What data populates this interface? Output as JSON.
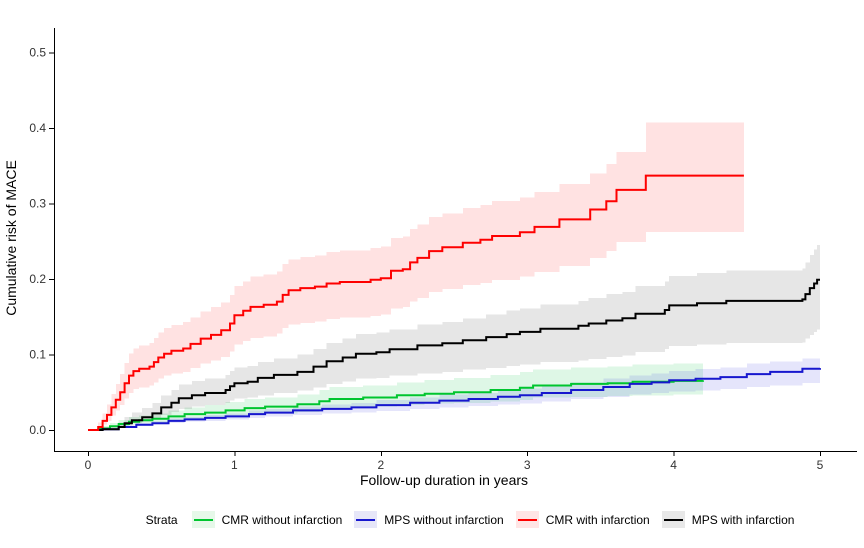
{
  "chart_data": {
    "type": "line",
    "subtype": "step-cumulative-incidence-with-confidence-bands",
    "title": "",
    "xlabel": "Follow-up duration in years",
    "ylabel": "Cumulative risk of MACE",
    "xlim": [
      0,
      5
    ],
    "ylim": [
      0,
      0.5
    ],
    "x_tick_labels": [
      "0",
      "1",
      "2",
      "3",
      "4",
      "5"
    ],
    "x_tick_values": [
      0,
      1,
      2,
      3,
      4,
      5
    ],
    "y_tick_labels": [
      "0.0",
      "0.1",
      "0.2",
      "0.3",
      "0.4",
      "0.5"
    ],
    "y_tick_values": [
      0,
      0.1,
      0.2,
      0.3,
      0.4,
      0.5
    ],
    "grid": false,
    "legend_position": "bottom",
    "legend_title": "Strata",
    "series": [
      {
        "name": "CMR without infarction",
        "line_color": "#00C52F",
        "band_fill": "rgba(0,190,60,0.13)",
        "key_bg": "#e6f8e9",
        "x": [
          0,
          0.08,
          0.15,
          0.21,
          0.28,
          0.35,
          0.44,
          0.55,
          0.66,
          0.8,
          0.94,
          1.07,
          1.21,
          1.43,
          1.58,
          1.65,
          1.88,
          2.11,
          2.3,
          2.5,
          2.75,
          2.95,
          3.04,
          3.3,
          3.55,
          3.72,
          4.0,
          4.2
        ],
        "y": [
          0,
          0.002,
          0.005,
          0.008,
          0.011,
          0.013,
          0.015,
          0.018,
          0.021,
          0.023,
          0.026,
          0.029,
          0.031,
          0.034,
          0.038,
          0.041,
          0.043,
          0.046,
          0.048,
          0.05,
          0.053,
          0.056,
          0.059,
          0.061,
          0.062,
          0.064,
          0.065,
          0.066
        ],
        "lo": [
          0,
          0.001,
          0.003,
          0.005,
          0.007,
          0.009,
          0.01,
          0.012,
          0.014,
          0.016,
          0.018,
          0.02,
          0.022,
          0.024,
          0.027,
          0.029,
          0.031,
          0.033,
          0.035,
          0.036,
          0.038,
          0.04,
          0.043,
          0.044,
          0.045,
          0.046,
          0.047,
          0.048
        ],
        "hi": [
          0,
          0.005,
          0.009,
          0.013,
          0.017,
          0.019,
          0.022,
          0.026,
          0.03,
          0.033,
          0.037,
          0.041,
          0.043,
          0.047,
          0.053,
          0.057,
          0.059,
          0.063,
          0.066,
          0.069,
          0.073,
          0.077,
          0.08,
          0.083,
          0.084,
          0.087,
          0.088,
          0.09
        ]
      },
      {
        "name": "MPS without infarction",
        "line_color": "#1717CE",
        "band_fill": "rgba(40,40,220,0.12)",
        "key_bg": "#e6e6f8",
        "x": [
          0,
          0.1,
          0.21,
          0.33,
          0.44,
          0.55,
          0.66,
          0.8,
          0.94,
          1.1,
          1.21,
          1.4,
          1.6,
          1.8,
          1.97,
          2.2,
          2.4,
          2.6,
          2.8,
          2.95,
          3.1,
          3.3,
          3.52,
          3.7,
          3.85,
          3.97,
          4.15,
          4.32,
          4.5,
          4.66,
          4.88,
          5.0
        ],
        "y": [
          0,
          0.001,
          0.004,
          0.007,
          0.009,
          0.012,
          0.014,
          0.016,
          0.018,
          0.021,
          0.023,
          0.026,
          0.028,
          0.03,
          0.033,
          0.036,
          0.039,
          0.041,
          0.044,
          0.046,
          0.049,
          0.053,
          0.057,
          0.061,
          0.063,
          0.066,
          0.068,
          0.07,
          0.074,
          0.077,
          0.081,
          0.082
        ],
        "lo": [
          0,
          0.001,
          0.003,
          0.005,
          0.007,
          0.009,
          0.011,
          0.012,
          0.014,
          0.016,
          0.018,
          0.02,
          0.022,
          0.023,
          0.025,
          0.028,
          0.03,
          0.032,
          0.034,
          0.035,
          0.038,
          0.041,
          0.044,
          0.047,
          0.049,
          0.051,
          0.052,
          0.054,
          0.057,
          0.059,
          0.062,
          0.063
        ],
        "hi": [
          0,
          0.002,
          0.006,
          0.009,
          0.012,
          0.015,
          0.017,
          0.02,
          0.022,
          0.026,
          0.028,
          0.031,
          0.034,
          0.036,
          0.04,
          0.043,
          0.047,
          0.049,
          0.052,
          0.055,
          0.058,
          0.063,
          0.068,
          0.072,
          0.075,
          0.078,
          0.081,
          0.083,
          0.088,
          0.091,
          0.095,
          0.096
        ]
      },
      {
        "name": "MPS with infarction",
        "line_color": "#000000",
        "band_fill": "rgba(60,60,60,0.13)",
        "key_bg": "#e8e8e8",
        "x": [
          0,
          0.1,
          0.21,
          0.25,
          0.3,
          0.37,
          0.44,
          0.5,
          0.57,
          0.62,
          0.71,
          0.8,
          0.94,
          0.97,
          1.0,
          1.09,
          1.16,
          1.27,
          1.43,
          1.54,
          1.63,
          1.74,
          1.83,
          1.97,
          2.06,
          2.25,
          2.42,
          2.56,
          2.72,
          2.86,
          2.95,
          3.09,
          3.35,
          3.42,
          3.54,
          3.65,
          3.74,
          3.94,
          3.97,
          4.16,
          4.36,
          4.88,
          4.9,
          4.93,
          4.96,
          4.98,
          5.0
        ],
        "y": [
          0,
          0.001,
          0.004,
          0.009,
          0.013,
          0.017,
          0.022,
          0.03,
          0.036,
          0.042,
          0.046,
          0.049,
          0.053,
          0.058,
          0.062,
          0.064,
          0.069,
          0.073,
          0.077,
          0.084,
          0.091,
          0.096,
          0.101,
          0.103,
          0.107,
          0.112,
          0.115,
          0.119,
          0.123,
          0.127,
          0.13,
          0.134,
          0.138,
          0.141,
          0.145,
          0.148,
          0.154,
          0.159,
          0.165,
          0.168,
          0.171,
          0.173,
          0.18,
          0.188,
          0.194,
          0.199,
          0.199
        ],
        "lo": [
          0,
          0.001,
          0.003,
          0.006,
          0.009,
          0.011,
          0.015,
          0.02,
          0.024,
          0.028,
          0.031,
          0.033,
          0.036,
          0.039,
          0.042,
          0.043,
          0.046,
          0.049,
          0.052,
          0.056,
          0.061,
          0.064,
          0.068,
          0.069,
          0.072,
          0.075,
          0.077,
          0.08,
          0.082,
          0.085,
          0.087,
          0.09,
          0.092,
          0.094,
          0.097,
          0.099,
          0.103,
          0.107,
          0.111,
          0.113,
          0.115,
          0.116,
          0.121,
          0.126,
          0.13,
          0.133,
          0.133
        ],
        "hi": [
          0,
          0.004,
          0.01,
          0.017,
          0.023,
          0.029,
          0.036,
          0.046,
          0.053,
          0.06,
          0.065,
          0.068,
          0.073,
          0.078,
          0.083,
          0.085,
          0.09,
          0.095,
          0.1,
          0.107,
          0.115,
          0.121,
          0.127,
          0.129,
          0.133,
          0.14,
          0.143,
          0.148,
          0.153,
          0.158,
          0.161,
          0.166,
          0.171,
          0.175,
          0.18,
          0.183,
          0.191,
          0.197,
          0.204,
          0.208,
          0.211,
          0.214,
          0.222,
          0.232,
          0.239,
          0.245,
          0.245
        ]
      },
      {
        "name": "CMR with infarction",
        "line_color": "#FE0000",
        "band_fill": "rgba(255,30,30,0.13)",
        "key_bg": "#ffe5e5",
        "x": [
          0,
          0.07,
          0.1,
          0.13,
          0.16,
          0.19,
          0.22,
          0.25,
          0.28,
          0.31,
          0.35,
          0.42,
          0.45,
          0.48,
          0.52,
          0.57,
          0.65,
          0.7,
          0.77,
          0.84,
          0.91,
          0.97,
          1.0,
          1.06,
          1.11,
          1.2,
          1.29,
          1.33,
          1.37,
          1.45,
          1.55,
          1.63,
          1.72,
          1.93,
          2.0,
          2.07,
          2.15,
          2.2,
          2.25,
          2.33,
          2.42,
          2.56,
          2.68,
          2.76,
          2.95,
          3.05,
          3.22,
          3.43,
          3.54,
          3.61,
          3.81,
          4.48
        ],
        "y": [
          0,
          0.004,
          0.012,
          0.02,
          0.03,
          0.04,
          0.05,
          0.062,
          0.072,
          0.078,
          0.081,
          0.084,
          0.09,
          0.096,
          0.101,
          0.105,
          0.108,
          0.114,
          0.121,
          0.126,
          0.132,
          0.141,
          0.152,
          0.158,
          0.163,
          0.166,
          0.17,
          0.179,
          0.185,
          0.188,
          0.19,
          0.194,
          0.196,
          0.199,
          0.201,
          0.211,
          0.213,
          0.222,
          0.228,
          0.237,
          0.242,
          0.248,
          0.252,
          0.257,
          0.262,
          0.269,
          0.279,
          0.292,
          0.303,
          0.318,
          0.337,
          0.337
        ],
        "lo": [
          0,
          0.002,
          0.007,
          0.012,
          0.019,
          0.026,
          0.033,
          0.042,
          0.049,
          0.054,
          0.056,
          0.059,
          0.063,
          0.068,
          0.072,
          0.075,
          0.077,
          0.082,
          0.088,
          0.092,
          0.097,
          0.104,
          0.113,
          0.118,
          0.122,
          0.124,
          0.128,
          0.135,
          0.14,
          0.142,
          0.144,
          0.147,
          0.149,
          0.151,
          0.153,
          0.161,
          0.163,
          0.17,
          0.175,
          0.183,
          0.187,
          0.192,
          0.195,
          0.199,
          0.203,
          0.209,
          0.217,
          0.228,
          0.237,
          0.249,
          0.262,
          0.262
        ],
        "hi": [
          0,
          0.01,
          0.022,
          0.034,
          0.048,
          0.061,
          0.074,
          0.089,
          0.101,
          0.108,
          0.112,
          0.115,
          0.122,
          0.129,
          0.135,
          0.139,
          0.143,
          0.149,
          0.157,
          0.163,
          0.169,
          0.179,
          0.191,
          0.197,
          0.203,
          0.206,
          0.21,
          0.22,
          0.226,
          0.229,
          0.231,
          0.236,
          0.238,
          0.241,
          0.243,
          0.254,
          0.256,
          0.266,
          0.272,
          0.282,
          0.287,
          0.294,
          0.298,
          0.303,
          0.308,
          0.315,
          0.326,
          0.34,
          0.352,
          0.368,
          0.407,
          0.407
        ]
      }
    ],
    "legend_order": [
      "CMR without infarction",
      "MPS without infarction",
      "CMR with infarction",
      "MPS with infarction"
    ],
    "axes_style": {
      "axis_line_color": "#000000",
      "tick_color": "#000000",
      "tick_label_color": "#333333"
    }
  },
  "legend": {
    "title": "Strata"
  }
}
